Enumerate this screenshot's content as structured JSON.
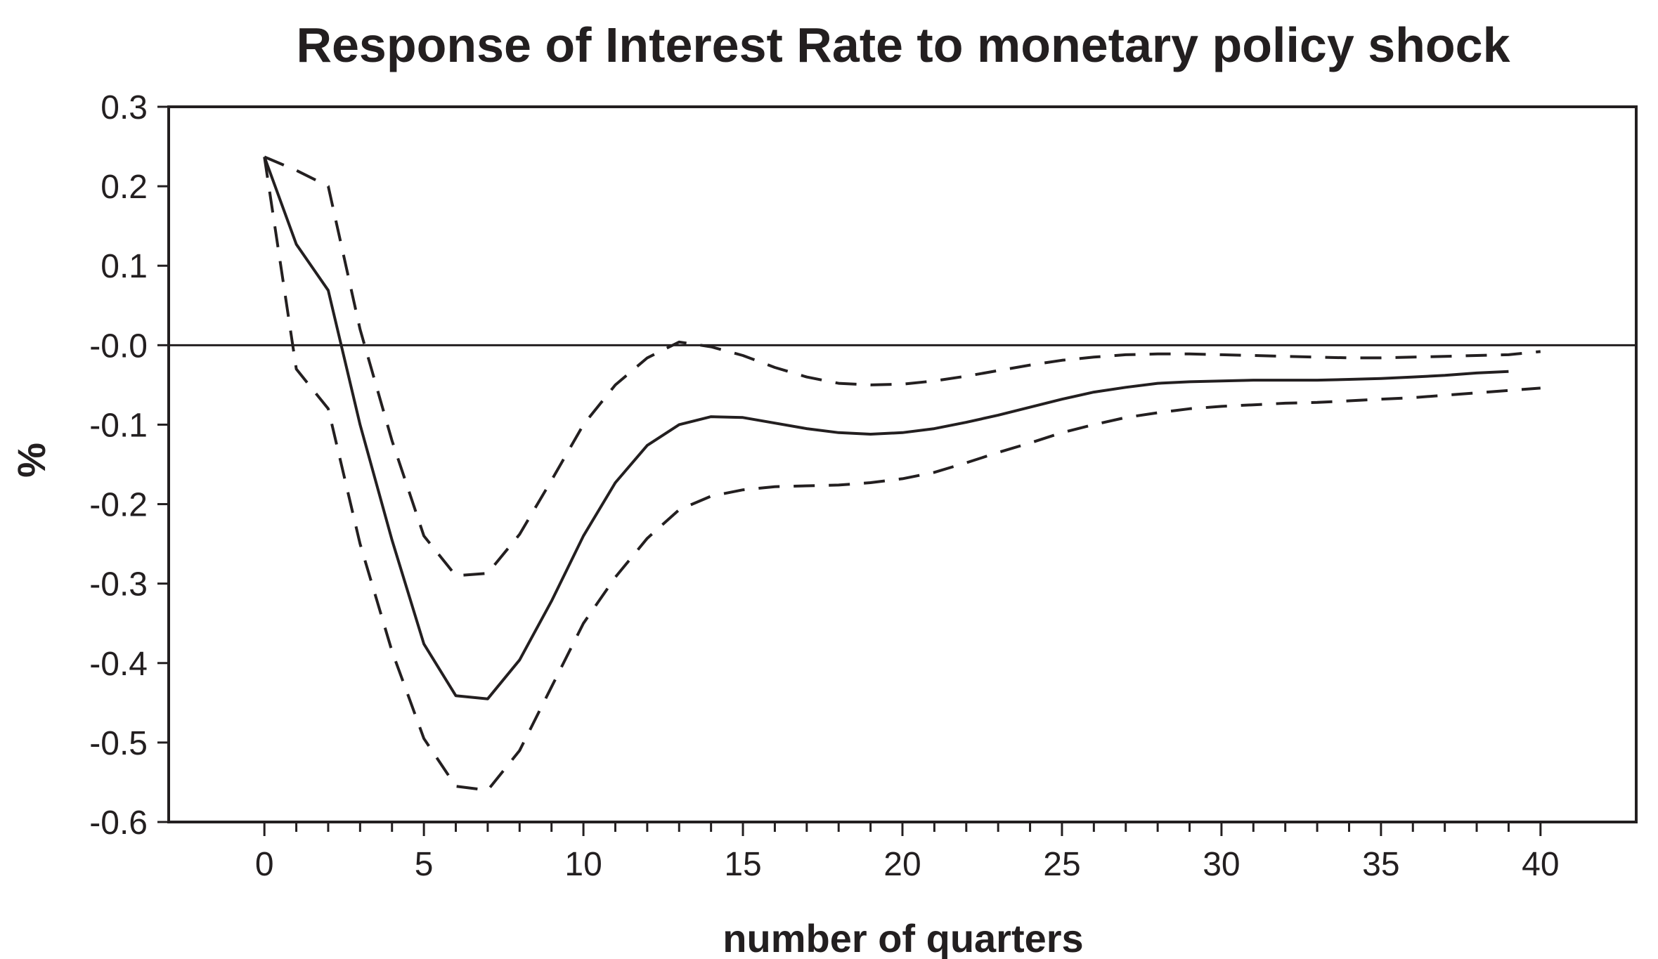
{
  "chart_data": {
    "type": "line",
    "title": "Response of Interest Rate to monetary policy shock",
    "xlabel": "number of quarters",
    "ylabel": "%",
    "xlim": [
      -3,
      43
    ],
    "ylim": [
      -0.6,
      0.3
    ],
    "xticks": [
      0,
      5,
      10,
      15,
      20,
      25,
      30,
      35,
      40
    ],
    "xtick_labels": [
      "0",
      "5",
      "10",
      "15",
      "20",
      "25",
      "30",
      "35",
      "40"
    ],
    "yticks": [
      0.3,
      0.2,
      0.1,
      0.0,
      -0.1,
      -0.2,
      -0.3,
      -0.4,
      -0.5,
      -0.6
    ],
    "ytick_labels": [
      "0.3",
      "0.2",
      "0.1",
      "-0.0",
      "-0.1",
      "-0.2",
      "-0.3",
      "-0.4",
      "-0.5",
      "-0.6"
    ],
    "grid": false,
    "zero_line": true,
    "series": [
      {
        "style": "solid",
        "x": [
          0,
          1,
          2,
          3,
          4,
          5,
          6,
          7,
          8,
          9,
          10,
          11,
          12,
          13,
          14,
          15,
          16,
          17,
          18,
          19,
          20,
          21,
          22,
          23,
          24,
          25,
          26,
          27,
          28,
          29,
          30,
          31,
          32,
          33,
          34,
          35,
          36,
          37,
          38,
          39
        ],
        "y": [
          0.237,
          0.127,
          0.069,
          -0.1,
          -0.245,
          -0.376,
          -0.441,
          -0.445,
          -0.396,
          -0.322,
          -0.24,
          -0.173,
          -0.126,
          -0.1,
          -0.09,
          -0.091,
          -0.098,
          -0.105,
          -0.11,
          -0.112,
          -0.11,
          -0.105,
          -0.097,
          -0.088,
          -0.078,
          -0.068,
          -0.059,
          -0.053,
          -0.048,
          -0.046,
          -0.045,
          -0.044,
          -0.044,
          -0.044,
          -0.043,
          -0.042,
          -0.04,
          -0.038,
          -0.035,
          -0.033
        ]
      },
      {
        "style": "dashed",
        "x": [
          0,
          1,
          2,
          3,
          4,
          5,
          6,
          7,
          8,
          9,
          10,
          11,
          12,
          13,
          14,
          15,
          16,
          17,
          18,
          19,
          20,
          21,
          22,
          23,
          24,
          25,
          26,
          27,
          28,
          29,
          30,
          31,
          32,
          33,
          34,
          35,
          36,
          37,
          38,
          39,
          40
        ],
        "y": [
          0.237,
          0.22,
          0.2,
          0.02,
          -0.12,
          -0.24,
          -0.29,
          -0.287,
          -0.238,
          -0.17,
          -0.1,
          -0.05,
          -0.016,
          0.004,
          -0.002,
          -0.013,
          -0.028,
          -0.04,
          -0.048,
          -0.05,
          -0.049,
          -0.045,
          -0.039,
          -0.032,
          -0.025,
          -0.019,
          -0.015,
          -0.012,
          -0.011,
          -0.011,
          -0.012,
          -0.013,
          -0.014,
          -0.015,
          -0.016,
          -0.016,
          -0.015,
          -0.014,
          -0.013,
          -0.012,
          -0.008
        ]
      },
      {
        "style": "dashed",
        "x": [
          0,
          1,
          2,
          3,
          4,
          5,
          6,
          7,
          8,
          9,
          10,
          11,
          12,
          13,
          14,
          15,
          16,
          17,
          18,
          19,
          20,
          21,
          22,
          23,
          24,
          25,
          26,
          27,
          28,
          29,
          30,
          31,
          32,
          33,
          34,
          35,
          36,
          37,
          38,
          39,
          40
        ],
        "y": [
          0.237,
          -0.03,
          -0.08,
          -0.25,
          -0.385,
          -0.495,
          -0.555,
          -0.56,
          -0.51,
          -0.43,
          -0.35,
          -0.292,
          -0.243,
          -0.207,
          -0.19,
          -0.182,
          -0.178,
          -0.177,
          -0.176,
          -0.173,
          -0.168,
          -0.16,
          -0.148,
          -0.135,
          -0.123,
          -0.11,
          -0.1,
          -0.091,
          -0.085,
          -0.08,
          -0.077,
          -0.075,
          -0.073,
          -0.072,
          -0.07,
          -0.068,
          -0.066,
          -0.063,
          -0.06,
          -0.057,
          -0.054
        ]
      }
    ]
  }
}
